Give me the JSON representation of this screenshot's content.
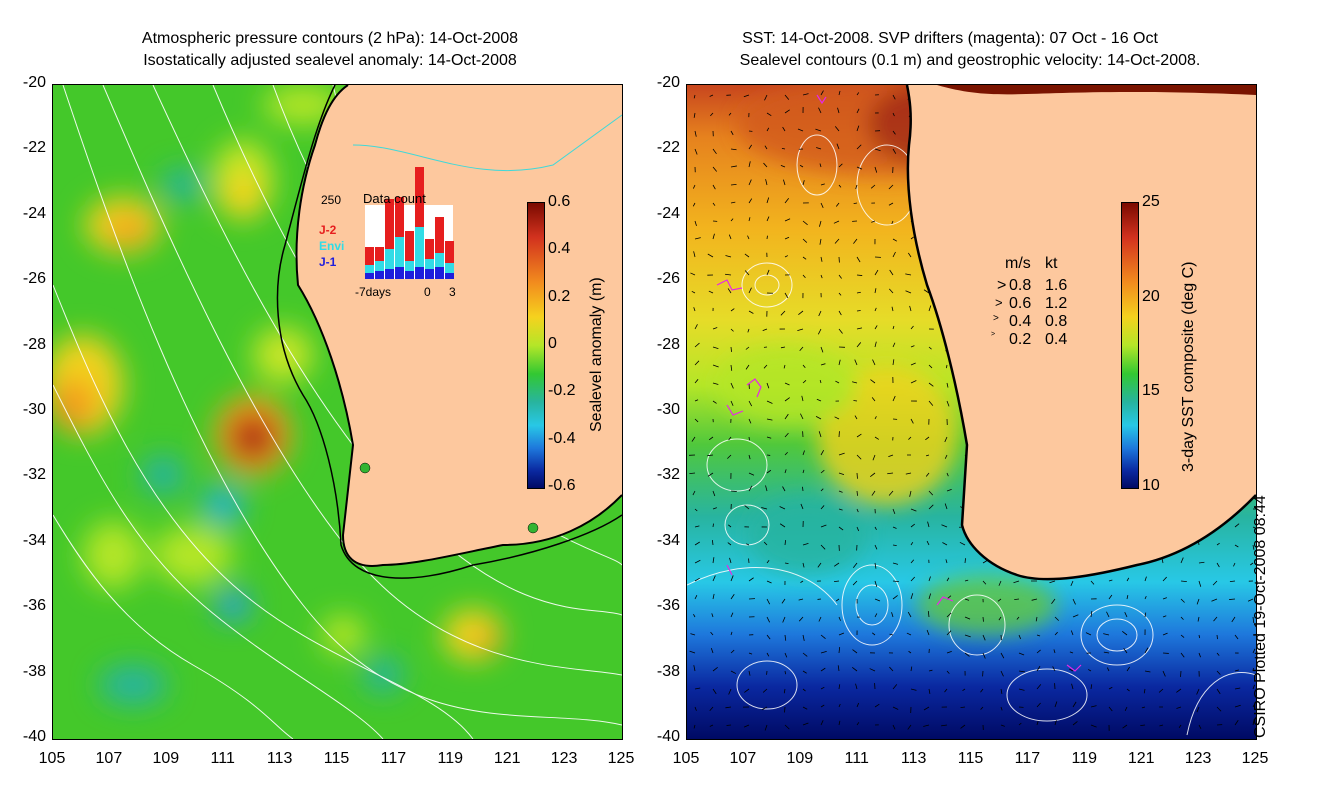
{
  "left_panel": {
    "title_line1": "Atmospheric pressure contours (2 hPa): 14-Oct-2008",
    "title_line2": "Isostatically adjusted sealevel anomaly: 14-Oct-2008",
    "y_ticks": [
      "-20",
      "-22",
      "-24",
      "-26",
      "-28",
      "-30",
      "-32",
      "-34",
      "-36",
      "-38",
      "-40"
    ],
    "x_ticks": [
      "105",
      "107",
      "109",
      "111",
      "113",
      "115",
      "117",
      "119",
      "121",
      "123",
      "125"
    ],
    "colorbar": {
      "label": "Sealevel anomaly (m)",
      "ticks": [
        "0.6",
        "0.4",
        "0.2",
        "0",
        "-0.2",
        "-0.4",
        "-0.6"
      ],
      "colors": [
        "#7a0a00",
        "#d2321e",
        "#f28c1e",
        "#f5d21e",
        "#b4e628",
        "#32c832",
        "#28b4a0",
        "#28c8e6",
        "#1e78dc",
        "#0a28a0",
        "#000a64"
      ]
    },
    "data_count": {
      "title": "Data count",
      "max": "250",
      "series": [
        "J-2",
        "Envi",
        "J-1"
      ],
      "series_colors": [
        "#e61e1e",
        "#32dce6",
        "#1e1edc"
      ],
      "x_labels": [
        "-7days",
        "0",
        "3"
      ]
    }
  },
  "right_panel": {
    "title_line1": "SST: 14-Oct-2008. SVP drifters (magenta): 07 Oct - 16 Oct",
    "title_line2": "Sealevel contours (0.1 m) and geostrophic velocity: 14-Oct-2008.",
    "y_ticks": [
      "-20",
      "-22",
      "-24",
      "-26",
      "-28",
      "-30",
      "-32",
      "-34",
      "-36",
      "-38",
      "-40"
    ],
    "x_ticks": [
      "105",
      "107",
      "109",
      "111",
      "113",
      "115",
      "117",
      "119",
      "121",
      "123",
      "125"
    ],
    "colorbar": {
      "label": "3-day SST composite (deg C)",
      "ticks": [
        "25",
        "20",
        "15",
        "10"
      ],
      "colors": [
        "#7a0a00",
        "#d2321e",
        "#f28c1e",
        "#f5d21e",
        "#b4e628",
        "#32c832",
        "#28b4a0",
        "#28c8e6",
        "#1e78dc",
        "#0a28a0",
        "#000a64"
      ]
    },
    "velocity_legend": {
      "header_ms": "m/s",
      "header_kt": "kt",
      "rows": [
        {
          "ms": "0.8",
          "kt": "1.6"
        },
        {
          "ms": "0.6",
          "kt": "1.2"
        },
        {
          "ms": "0.4",
          "kt": "0.8"
        },
        {
          "ms": "0.2",
          "kt": "0.4"
        }
      ]
    }
  },
  "credit": "CSIRO Plotted 19-Oct-2008 08:44",
  "colors": {
    "land": "#fdc89e",
    "coast": "#000000",
    "contour": "#ffffff"
  }
}
